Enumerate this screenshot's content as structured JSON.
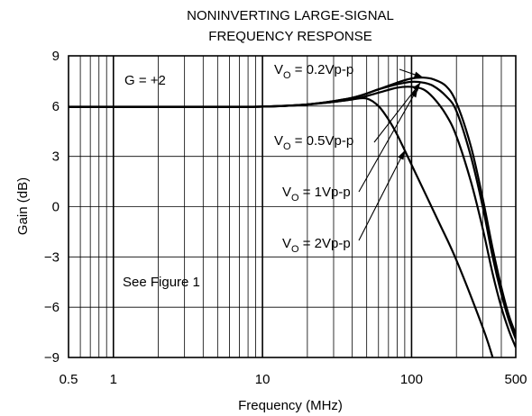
{
  "chart_data": {
    "type": "line",
    "title": [
      "NONINVERTING LARGE-SIGNAL",
      "FREQUENCY RESPONSE"
    ],
    "xlabel": "Frequency (MHz)",
    "ylabel": "Gain (dB)",
    "x_scale": "log",
    "xlim": [
      0.5,
      500
    ],
    "ylim": [
      -9,
      9
    ],
    "x_ticks": [
      {
        "value": 0.5,
        "label": "0.5"
      },
      {
        "value": 1,
        "label": "1"
      },
      {
        "value": 10,
        "label": "10"
      },
      {
        "value": 100,
        "label": "100"
      },
      {
        "value": 500,
        "label": "500"
      }
    ],
    "y_ticks": [
      {
        "value": 9,
        "label": "9"
      },
      {
        "value": 6,
        "label": "6"
      },
      {
        "value": 3,
        "label": "3"
      },
      {
        "value": 0,
        "label": "0"
      },
      {
        "value": -3,
        "label": "−3"
      },
      {
        "value": -6,
        "label": "−6"
      },
      {
        "value": -9,
        "label": "−9"
      }
    ],
    "grid": true,
    "annotations": [
      {
        "id": "gain",
        "text": "G = +2"
      },
      {
        "id": "see",
        "text": "See Figure 1"
      }
    ],
    "series": [
      {
        "id": "vo_0_2",
        "label": {
          "prefix": "V",
          "sub": "O",
          "suffix": " = 0.2Vp-p"
        },
        "x": [
          0.5,
          1,
          5,
          10,
          20,
          40,
          60,
          80,
          100,
          120,
          140,
          170,
          200,
          250,
          300,
          350,
          400,
          450,
          500
        ],
        "y": [
          5.95,
          5.95,
          5.95,
          5.97,
          6.1,
          6.5,
          7.0,
          7.4,
          7.65,
          7.7,
          7.6,
          7.2,
          6.2,
          3.6,
          0.5,
          -2.5,
          -4.8,
          -6.5,
          -7.6
        ]
      },
      {
        "id": "vo_0_5",
        "label": {
          "prefix": "V",
          "sub": "O",
          "suffix": " = 0.5Vp-p"
        },
        "x": [
          0.5,
          1,
          5,
          10,
          20,
          40,
          60,
          80,
          100,
          120,
          140,
          170,
          200,
          250,
          300,
          350,
          400,
          450,
          500
        ],
        "y": [
          5.95,
          5.95,
          5.95,
          5.97,
          6.1,
          6.5,
          7.0,
          7.3,
          7.45,
          7.4,
          7.2,
          6.6,
          5.7,
          3.0,
          0.0,
          -3.0,
          -5.2,
          -6.8,
          -7.9
        ]
      },
      {
        "id": "vo_1",
        "label": {
          "prefix": "V",
          "sub": "O",
          "suffix": " = 1Vp-p"
        },
        "x": [
          0.5,
          1,
          5,
          10,
          20,
          40,
          60,
          80,
          100,
          120,
          140,
          170,
          200,
          250,
          300,
          350,
          400,
          450,
          500
        ],
        "y": [
          5.95,
          5.95,
          5.95,
          5.97,
          6.1,
          6.4,
          6.8,
          7.1,
          7.15,
          7.0,
          6.5,
          5.5,
          4.2,
          1.5,
          -1.3,
          -4.0,
          -6.0,
          -7.4,
          -8.4
        ]
      },
      {
        "id": "vo_2",
        "label": {
          "prefix": "V",
          "sub": "O",
          "suffix": " = 2Vp-p"
        },
        "x": [
          0.5,
          1,
          5,
          10,
          20,
          30,
          40,
          50,
          60,
          70,
          80,
          100,
          150,
          200,
          300,
          350
        ],
        "y": [
          5.95,
          5.95,
          5.95,
          5.97,
          6.1,
          6.25,
          6.4,
          6.45,
          6.0,
          5.2,
          4.3,
          2.5,
          -0.8,
          -3.2,
          -7.2,
          -9.0
        ]
      }
    ]
  }
}
